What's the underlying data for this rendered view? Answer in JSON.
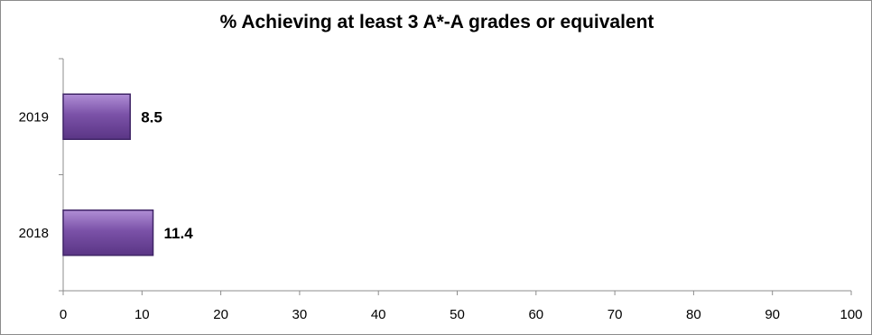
{
  "chart_data": {
    "type": "bar",
    "orientation": "horizontal",
    "title": "% Achieving at least 3 A*-A grades or equivalent",
    "categories": [
      "2019",
      "2018"
    ],
    "values": [
      8.5,
      11.4
    ],
    "data_labels": [
      "8.5",
      "11.4"
    ],
    "xlim": [
      0,
      100
    ],
    "x_ticks": [
      0,
      10,
      20,
      30,
      40,
      50,
      60,
      70,
      80,
      90,
      100
    ],
    "x_tick_labels": [
      "0",
      "10",
      "20",
      "30",
      "40",
      "50",
      "60",
      "70",
      "80",
      "90",
      "100"
    ],
    "xlabel": "",
    "ylabel": "",
    "grid": false,
    "legend": "none",
    "bar_color": "#7b52a8",
    "bar_edge_color": "#3f2466"
  }
}
